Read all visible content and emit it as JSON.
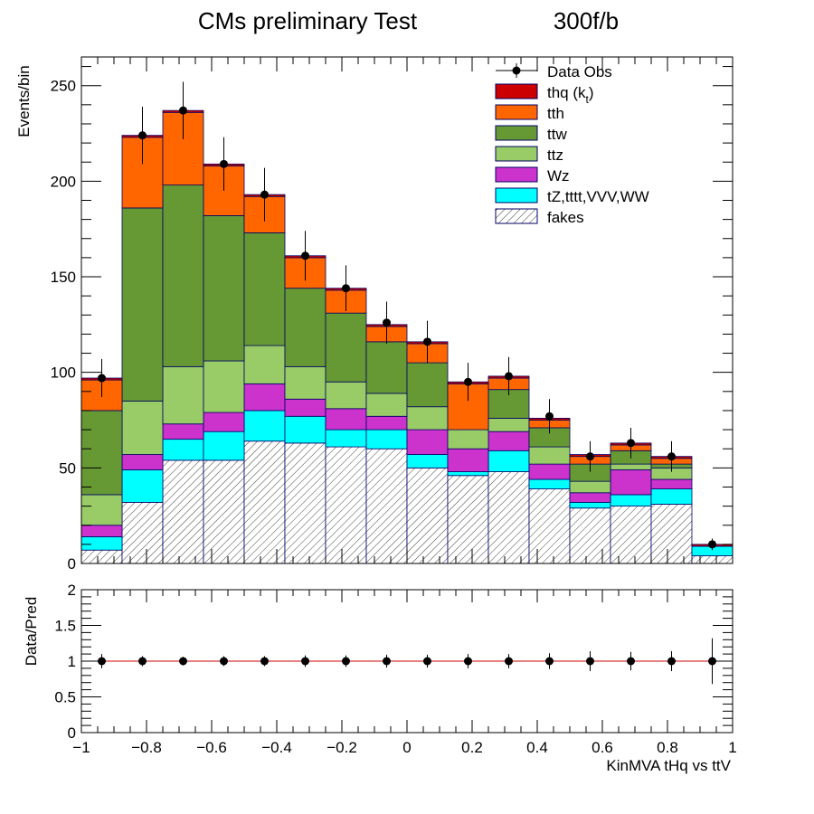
{
  "colors": {
    "thq": "#cc0000",
    "tth": "#ff6600",
    "ttw": "#669933",
    "ttz": "#99cc66",
    "wz": "#cc33cc",
    "other": "#00ffff",
    "fakes_hatch": "#333333",
    "outline": "#000066",
    "ratio_line": "#cc0000"
  },
  "chart_data": [
    {
      "type": "stacked-histogram",
      "title": "CMs preliminary Test",
      "title_right": "300f/b",
      "ylabel": "Events/bin",
      "xlabel": "",
      "xlim": [
        -1,
        1
      ],
      "ylim": [
        0,
        265
      ],
      "bin_edges": [
        -1,
        -0.875,
        -0.75,
        -0.625,
        -0.5,
        -0.375,
        -0.25,
        -0.125,
        0,
        0.125,
        0.25,
        0.375,
        0.5,
        0.625,
        0.75,
        0.875,
        1
      ],
      "yticks": [
        0,
        50,
        100,
        150,
        200,
        250
      ],
      "legend": [
        {
          "key": "data",
          "label": "Data Obs",
          "type": "marker"
        },
        {
          "key": "thq",
          "label": "thq (k",
          "sub": "t",
          "suffix": ")",
          "type": "fill"
        },
        {
          "key": "tth",
          "label": "tth",
          "type": "fill"
        },
        {
          "key": "ttw",
          "label": "ttw",
          "type": "fill"
        },
        {
          "key": "ttz",
          "label": "ttz",
          "type": "fill"
        },
        {
          "key": "wz",
          "label": "Wz",
          "type": "fill"
        },
        {
          "key": "other",
          "label": "tZ,tttt,VVV,WW",
          "type": "fill"
        },
        {
          "key": "fakes",
          "label": "fakes",
          "type": "hatch"
        }
      ],
      "series": [
        {
          "name": "fakes",
          "key": "fakes",
          "values": [
            7,
            32,
            54,
            54,
            64,
            63,
            61,
            60,
            50,
            46,
            48,
            39,
            29,
            30,
            31,
            4
          ]
        },
        {
          "name": "tZ,tttt,VVV,WW",
          "key": "other",
          "values": [
            7,
            17,
            11,
            15,
            16,
            14,
            9,
            10,
            7,
            2,
            11,
            5,
            3,
            6,
            8,
            5
          ]
        },
        {
          "name": "Wz",
          "key": "wz",
          "values": [
            6,
            8,
            8,
            10,
            14,
            9,
            11,
            7,
            13,
            12,
            10,
            8,
            5,
            13,
            5,
            0
          ]
        },
        {
          "name": "ttz",
          "key": "ttz",
          "values": [
            16,
            28,
            30,
            27,
            20,
            17,
            14,
            12,
            12,
            10,
            7,
            9,
            6,
            3,
            6,
            0
          ]
        },
        {
          "name": "ttw",
          "key": "ttw",
          "values": [
            44,
            101,
            95,
            76,
            59,
            41,
            36,
            27,
            23,
            0,
            15,
            10,
            9,
            7,
            2,
            0
          ]
        },
        {
          "name": "tth",
          "key": "tth",
          "values": [
            16,
            37,
            38,
            26,
            19,
            16,
            12,
            8,
            10,
            24,
            6,
            4,
            4,
            3,
            3,
            0
          ]
        },
        {
          "name": "thq (k_t)",
          "key": "thq",
          "values": [
            1,
            1,
            1,
            1,
            1,
            1,
            1,
            1,
            1,
            1,
            1,
            1,
            1,
            1,
            1,
            1
          ]
        }
      ],
      "data_obs": {
        "x": [
          -0.9375,
          -0.8125,
          -0.6875,
          -0.5625,
          -0.4375,
          -0.3125,
          -0.1875,
          -0.0625,
          0.0625,
          0.1875,
          0.3125,
          0.4375,
          0.5625,
          0.6875,
          0.8125,
          0.9375
        ],
        "y": [
          97,
          224,
          237,
          209,
          193,
          161,
          144,
          126,
          116,
          95,
          98,
          77,
          56,
          63,
          56,
          10
        ],
        "err": [
          10,
          15,
          15,
          14,
          14,
          13,
          12,
          11,
          11,
          10,
          10,
          9,
          8,
          8,
          8,
          3
        ]
      }
    },
    {
      "type": "scatter",
      "title": "",
      "ylabel": "Data/Pred",
      "xlabel": "KinMVA tHq vs ttV",
      "xlim": [
        -1,
        1
      ],
      "ylim": [
        0,
        2
      ],
      "yticks": [
        0,
        0.5,
        1,
        1.5,
        2
      ],
      "xticks": [
        -1,
        -0.8,
        -0.6,
        -0.4,
        -0.2,
        0,
        0.2,
        0.4,
        0.6,
        0.8,
        1
      ],
      "reference_line": 1,
      "x": [
        -0.9375,
        -0.8125,
        -0.6875,
        -0.5625,
        -0.4375,
        -0.3125,
        -0.1875,
        -0.0625,
        0.0625,
        0.1875,
        0.3125,
        0.4375,
        0.5625,
        0.6875,
        0.8125,
        0.9375
      ],
      "y": [
        1,
        1,
        1,
        1,
        1,
        1,
        1,
        1,
        1,
        1,
        1,
        1,
        1,
        1,
        1,
        1
      ],
      "err": [
        0.1,
        0.07,
        0.06,
        0.07,
        0.07,
        0.08,
        0.08,
        0.09,
        0.09,
        0.1,
        0.1,
        0.11,
        0.14,
        0.13,
        0.14,
        0.32
      ]
    }
  ]
}
